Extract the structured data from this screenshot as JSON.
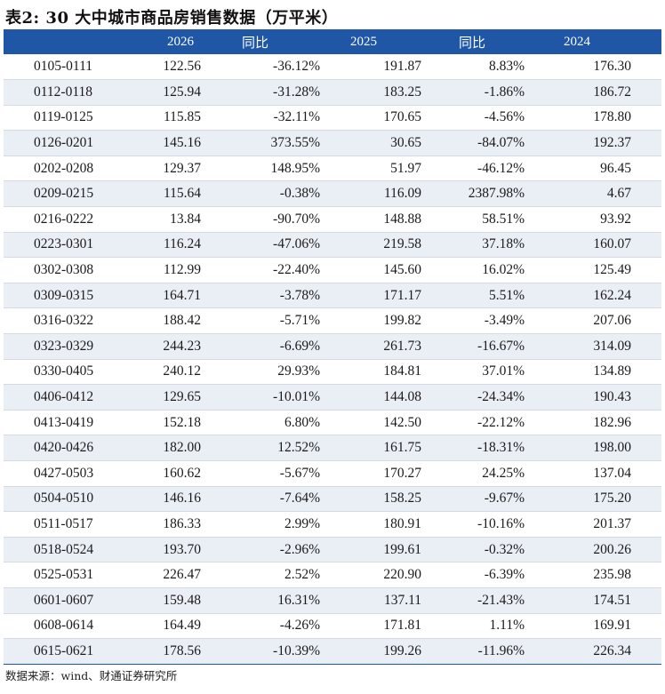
{
  "title": "表2: 30 大中城市商品房销售数据（万平米）",
  "columns": [
    "",
    "2026",
    "同比",
    "2025",
    "同比",
    "2024"
  ],
  "rows": [
    [
      "0105-0111",
      "122.56",
      "-36.12%",
      "191.87",
      "8.83%",
      "176.30"
    ],
    [
      "0112-0118",
      "125.94",
      "-31.28%",
      "183.25",
      "-1.86%",
      "186.72"
    ],
    [
      "0119-0125",
      "115.85",
      "-32.11%",
      "170.65",
      "-4.56%",
      "178.80"
    ],
    [
      "0126-0201",
      "145.16",
      "373.55%",
      "30.65",
      "-84.07%",
      "192.37"
    ],
    [
      "0202-0208",
      "129.37",
      "148.95%",
      "51.97",
      "-46.12%",
      "96.45"
    ],
    [
      "0209-0215",
      "115.64",
      "-0.38%",
      "116.09",
      "2387.98%",
      "4.67"
    ],
    [
      "0216-0222",
      "13.84",
      "-90.70%",
      "148.88",
      "58.51%",
      "93.92"
    ],
    [
      "0223-0301",
      "116.24",
      "-47.06%",
      "219.58",
      "37.18%",
      "160.07"
    ],
    [
      "0302-0308",
      "112.99",
      "-22.40%",
      "145.60",
      "16.02%",
      "125.49"
    ],
    [
      "0309-0315",
      "164.71",
      "-3.78%",
      "171.17",
      "5.51%",
      "162.24"
    ],
    [
      "0316-0322",
      "188.42",
      "-5.71%",
      "199.82",
      "-3.49%",
      "207.06"
    ],
    [
      "0323-0329",
      "244.23",
      "-6.69%",
      "261.73",
      "-16.67%",
      "314.09"
    ],
    [
      "0330-0405",
      "240.12",
      "29.93%",
      "184.81",
      "37.01%",
      "134.89"
    ],
    [
      "0406-0412",
      "129.65",
      "-10.01%",
      "144.08",
      "-24.34%",
      "190.43"
    ],
    [
      "0413-0419",
      "152.18",
      "6.80%",
      "142.50",
      "-22.12%",
      "182.96"
    ],
    [
      "0420-0426",
      "182.00",
      "12.52%",
      "161.75",
      "-18.31%",
      "198.00"
    ],
    [
      "0427-0503",
      "160.62",
      "-5.67%",
      "170.27",
      "24.25%",
      "137.04"
    ],
    [
      "0504-0510",
      "146.16",
      "-7.64%",
      "158.25",
      "-9.67%",
      "175.20"
    ],
    [
      "0511-0517",
      "186.33",
      "2.99%",
      "180.91",
      "-10.16%",
      "201.37"
    ],
    [
      "0518-0524",
      "193.70",
      "-2.96%",
      "199.61",
      "-0.32%",
      "200.26"
    ],
    [
      "0525-0531",
      "226.47",
      "2.52%",
      "220.90",
      "-6.39%",
      "235.98"
    ],
    [
      "0601-0607",
      "159.48",
      "16.31%",
      "137.11",
      "-21.43%",
      "174.51"
    ],
    [
      "0608-0614",
      "164.49",
      "-4.26%",
      "171.81",
      "1.11%",
      "169.91"
    ],
    [
      "0615-0621",
      "178.56",
      "-10.39%",
      "199.26",
      "-11.96%",
      "226.34"
    ]
  ],
  "source": "数据来源：wind、财通证券研究所",
  "colors": {
    "header_bg": "#1f56a6",
    "header_text": "#ffffff",
    "stripe": "#eaeef5"
  }
}
